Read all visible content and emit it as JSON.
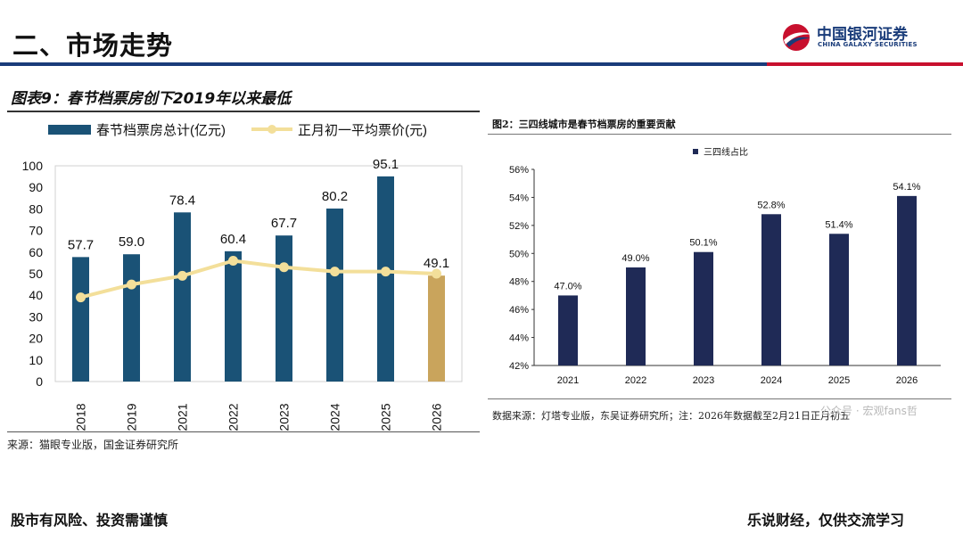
{
  "header": {
    "title": "二、市场走势",
    "logo_cn": "中国银河证券",
    "logo_en": "CHINA GALAXY SECURITIES"
  },
  "colors": {
    "navy": "#1a5276",
    "gold": "#c9a45c",
    "line": "#f3df9a",
    "dark_navy": "#1f2a56",
    "red": "#c8102e"
  },
  "figure1": {
    "title": "图表9：春节档票房创下2019年以来最低",
    "source": "来源：猫眼专业版，国金证券研究所"
  },
  "figure2": {
    "title": "图2：三四线城市是春节档票房的重要贡献",
    "source": "数据来源：灯塔专业版，东吴证券研究所；注：2026年数据截至2月21日正月初五"
  },
  "watermark": "公众号 · 宏观fans哲",
  "footer": {
    "left": "股市有风险、投资需谨慎",
    "right": "乐说财经，仅供交流学习"
  },
  "chart_data": [
    {
      "type": "bar",
      "categories": [
        "2018",
        "2019",
        "2021",
        "2022",
        "2023",
        "2024",
        "2025",
        "2026"
      ],
      "series": [
        {
          "name": "春节档票房总计(亿元)",
          "kind": "bar",
          "values": [
            57.7,
            59.0,
            78.4,
            60.4,
            67.7,
            80.2,
            95.1,
            49.1
          ],
          "labels": [
            "57.7",
            "59.0",
            "78.4",
            "60.4",
            "67.7",
            "80.2",
            "95.1",
            "49.1"
          ]
        },
        {
          "name": "正月初一平均票价(元)",
          "kind": "line",
          "values": [
            39,
            45,
            49,
            56,
            53,
            51,
            51,
            50
          ]
        }
      ],
      "highlight_index": 7,
      "ylim": [
        0,
        100
      ],
      "yticks": [
        "0",
        "10",
        "20",
        "30",
        "40",
        "50",
        "60",
        "70",
        "80",
        "90",
        "100"
      ],
      "legend_position": "top"
    },
    {
      "type": "bar",
      "categories": [
        "2021",
        "2022",
        "2023",
        "2024",
        "2025",
        "2026"
      ],
      "series": [
        {
          "name": "三四线占比",
          "values": [
            47.0,
            49.0,
            50.1,
            52.8,
            51.4,
            54.1
          ],
          "labels": [
            "47.0%",
            "49.0%",
            "50.1%",
            "52.8%",
            "51.4%",
            "54.1%"
          ]
        }
      ],
      "ylim": [
        42,
        56
      ],
      "yticks": [
        "42%",
        "44%",
        "46%",
        "48%",
        "50%",
        "52%",
        "54%",
        "56%"
      ],
      "legend_position": "top"
    }
  ]
}
